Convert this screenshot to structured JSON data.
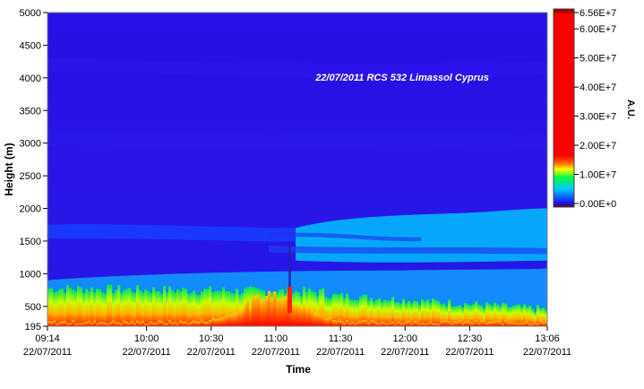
{
  "chart_data": {
    "type": "heatmap",
    "title": "22/07/2011 RCS 532 Limassol Cyprus",
    "xlabel": "Time",
    "ylabel": "Height (m)",
    "colorbar_label": "A.U.",
    "x_range": [
      "09:14",
      "13:06"
    ],
    "x_ticks": [
      {
        "time": "09:14",
        "date": "22/07/2011"
      },
      {
        "time": "10:00",
        "date": "22/07/2011"
      },
      {
        "time": "10:30",
        "date": "22/07/2011"
      },
      {
        "time": "11:00",
        "date": "22/07/2011"
      },
      {
        "time": "11:30",
        "date": "22/07/2011"
      },
      {
        "time": "12:00",
        "date": "22/07/2011"
      },
      {
        "time": "12:30",
        "date": "22/07/2011"
      },
      {
        "time": "13:06",
        "date": "22/07/2011"
      }
    ],
    "ylim": [
      195,
      5000
    ],
    "y_ticks": [
      195,
      500,
      1000,
      1500,
      2000,
      2500,
      3000,
      3500,
      4000,
      4500,
      5000
    ],
    "color_range": [
      0,
      65600000
    ],
    "colorbar_ticks": [
      {
        "value": 65600000,
        "label": "6.56E+7"
      },
      {
        "value": 60000000,
        "label": "6.00E+7"
      },
      {
        "value": 50000000,
        "label": "5.00E+7"
      },
      {
        "value": 40000000,
        "label": "4.00E+7"
      },
      {
        "value": 30000000,
        "label": "3.00E+7"
      },
      {
        "value": 20000000,
        "label": "2.00E+7"
      },
      {
        "value": 10000000,
        "label": "1.00E+7"
      },
      {
        "value": 0,
        "label": "0.00E+0"
      }
    ],
    "colors": {
      "background_low": "#2a12e0",
      "boundary_layer": "#00c8ff",
      "high": "#ff0000",
      "top": "#6a0000"
    }
  }
}
